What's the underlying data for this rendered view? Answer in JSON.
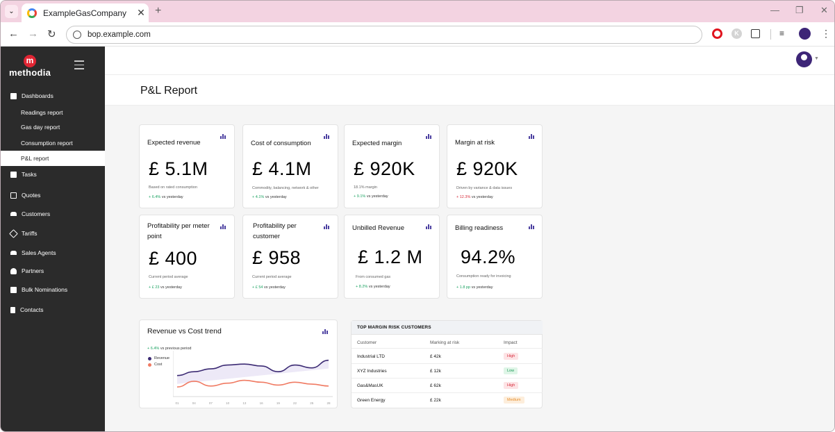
{
  "browser": {
    "tab_title": "ExampleGasCompany",
    "url": "bop.example.com"
  },
  "brand": {
    "logo_letter": "m",
    "logo_text": "methodia"
  },
  "sidebar": {
    "items": [
      {
        "label": "Dashboards"
      },
      {
        "label": "Readings report"
      },
      {
        "label": "Gas day report"
      },
      {
        "label": "Consumption report"
      },
      {
        "label": "P&L report"
      },
      {
        "label": "Tasks"
      },
      {
        "label": "Quotes"
      },
      {
        "label": "Customers"
      },
      {
        "label": "Tariffs"
      },
      {
        "label": "Sales Agents"
      },
      {
        "label": "Partners"
      },
      {
        "label": "Bulk Nominations"
      },
      {
        "label": "Contacts"
      }
    ],
    "active": "P&L report"
  },
  "page": {
    "title": "P&L Report"
  },
  "kpis": [
    {
      "title": "Expected revenue",
      "value": "£  5.1M",
      "note": "Based on rated consumption",
      "trend": "+ 6.4%",
      "trend_suffix": "vs yesterday",
      "direction": "up"
    },
    {
      "title": "Cost of consumption",
      "value": "£  4.1M",
      "note": "Commodity, balancing, network & other",
      "trend": "+ 4.1%",
      "trend_suffix": "vs yesterday",
      "direction": "up"
    },
    {
      "title": "Expected margin",
      "value": "£  920K",
      "note": "18.1% margin",
      "trend": "+ 9.1%",
      "trend_suffix": "vs yesterday",
      "direction": "up"
    },
    {
      "title": "Margin at risk",
      "value": "£  920K",
      "note": "Driven by variance & data issues",
      "trend": "+ 12.3%",
      "trend_suffix": "vs yesterday",
      "direction": "down"
    },
    {
      "title": "Profitability per meter point",
      "value": "£  400",
      "note": "Current period average",
      "trend": "+ £ 23",
      "trend_suffix": "vs yesterday",
      "direction": "up"
    },
    {
      "title": "Profitability per customer",
      "value": "£ 958",
      "note": "Current period average",
      "trend": "+ £ 54",
      "trend_suffix": "vs yesterday",
      "direction": "up"
    },
    {
      "title": "Unbilled Revenue",
      "value": "£ 1.2 M",
      "note": "From consumed gas",
      "trend": "+ 8.2%",
      "trend_suffix": "vs yesterday",
      "direction": "up"
    },
    {
      "title": "Billing readiness",
      "value": "94.2%",
      "note": "Consumption ready for invoicing",
      "trend": "+ 1.8 pp",
      "trend_suffix": "vs yesterday",
      "direction": "up"
    }
  ],
  "trend_card": {
    "title": "Revenue vs Cost trend",
    "sub_trend": "+ 6.4%",
    "sub_suffix": "vs previous period",
    "colors": {
      "revenue": "#3b2a73",
      "cost": "#f07a62"
    }
  },
  "chart_data": {
    "type": "line",
    "title": "Revenue vs Cost trend",
    "x": [
      "01",
      "04",
      "07",
      "10",
      "13",
      "16",
      "19",
      "22",
      "25",
      "28"
    ],
    "series": [
      {
        "name": "Revenue",
        "values": [
          4.2,
          4.6,
          4.9,
          5.3,
          5.4,
          5.2,
          4.6,
          5.3,
          5.0,
          5.8
        ]
      },
      {
        "name": "Cost",
        "values": [
          3.0,
          3.6,
          3.1,
          3.4,
          3.7,
          3.5,
          3.2,
          3.5,
          3.3,
          3.1
        ]
      }
    ],
    "ylim": [
      2,
      6.5
    ],
    "grid": false,
    "legend": "left"
  },
  "risk_table": {
    "title": "TOP MARGIN RISK CUSTOMERS",
    "columns": [
      "Customer",
      "Marking at risk",
      "Impact"
    ],
    "rows": [
      {
        "customer": "Industrial LTD",
        "amount": "£ 42k",
        "impact": "High",
        "level": "high"
      },
      {
        "customer": "XYZ Industries",
        "amount": "£ 12k",
        "impact": "Low",
        "level": "low"
      },
      {
        "customer": "Gas&MasUK",
        "amount": "£ 62k",
        "impact": "High",
        "level": "high"
      },
      {
        "customer": "Green Energy",
        "amount": "£ 22k",
        "impact": "Medium",
        "level": "med"
      }
    ]
  }
}
